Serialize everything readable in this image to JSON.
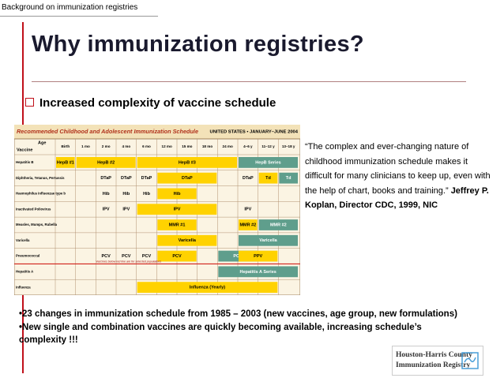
{
  "header": {
    "label": "Background on immunization registries"
  },
  "title": "Why immunization registries?",
  "subtitle": "Increased complexity of vaccine schedule",
  "schedule": {
    "title": "Recommended Childhood and Adolescent Immunization Schedule",
    "region": "UNITED STATES • JANUARY–JUNE 2004",
    "age_label": "Age",
    "vaccine_label": "Vaccine",
    "ages": [
      "Birth",
      "1 mo",
      "2 mo",
      "4 mo",
      "6 mo",
      "12 mo",
      "15 mo",
      "18 mo",
      "24 mo",
      "4–6 y",
      "11–12 y",
      "13–18 y"
    ],
    "note": "Vaccines below red line are for selected populations",
    "rows": [
      {
        "label": "Hepatitis B",
        "doses": [
          "HepB #1",
          "HepB #2",
          "HepB #3",
          "HepB Series"
        ]
      },
      {
        "label": "Diphtheria, Tetanus, Pertussis",
        "doses": [
          "DTaP",
          "DTaP",
          "DTaP",
          "DTaP",
          "DTaP",
          "Td",
          "Td"
        ]
      },
      {
        "label": "Haemophilus influenzae type b",
        "doses": [
          "Hib",
          "Hib",
          "Hib",
          "Hib"
        ]
      },
      {
        "label": "Inactivated Poliovirus",
        "doses": [
          "IPV",
          "IPV",
          "IPV",
          "IPV"
        ]
      },
      {
        "label": "Measles, Mumps, Rubella",
        "doses": [
          "MMR #1",
          "MMR #2",
          "MMR #2"
        ]
      },
      {
        "label": "Varicella",
        "doses": [
          "Varicella",
          "Varicella"
        ]
      },
      {
        "label": "Pneumococcal",
        "doses": [
          "PCV",
          "PCV",
          "PCV",
          "PCV",
          "PCV",
          "PPV"
        ]
      },
      {
        "label": "Hepatitis A",
        "doses": [
          "Hepatitis A Series"
        ]
      },
      {
        "label": "Influenza",
        "doses": [
          "Influenza (Yearly)"
        ]
      }
    ]
  },
  "quote": {
    "text": "“The complex and ever-changing nature of childhood immunization schedule makes it difficult for many clinicians to keep up, even with the help of chart, books and training.”",
    "attribution": "Jeffrey P. Koplan, Director CDC, 1999, NIC"
  },
  "bullets": [
    "23 changes in immunization schedule from 1985 – 2003 (new vaccines, age group, new formulations)",
    "New single and combination vaccines are quickly becoming available, increasing schedule’s complexity !!!"
  ],
  "logo": {
    "lines": [
      "Houston-Harris County",
      "Immunization Registry"
    ]
  }
}
